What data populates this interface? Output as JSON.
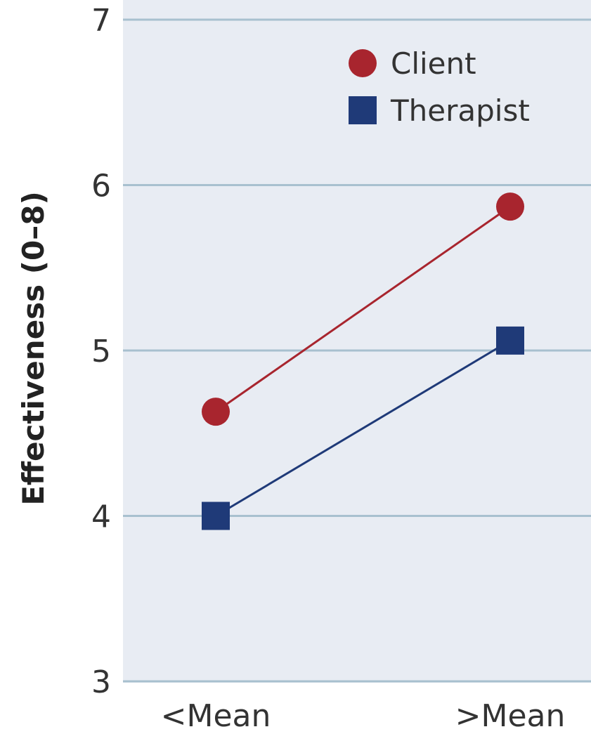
{
  "chart_data": {
    "type": "line",
    "title": "",
    "xlabel": "",
    "ylabel": "Effectiveness (0–8)",
    "categories": [
      "<Mean",
      ">Mean"
    ],
    "ylim": [
      3,
      7
    ],
    "yticks": [
      "3",
      "4",
      "5",
      "6",
      "7"
    ],
    "grid": "horizontal",
    "legend_position": "top-right",
    "plot_background": "#e8ecf3",
    "gridline_color": "#a8c0cf",
    "series": [
      {
        "name": "Client",
        "marker": "circle",
        "color": "#a8252e",
        "values": [
          4.63,
          5.87
        ]
      },
      {
        "name": "Therapist",
        "marker": "square",
        "color": "#1f3a78",
        "values": [
          4.0,
          5.06
        ]
      }
    ]
  }
}
